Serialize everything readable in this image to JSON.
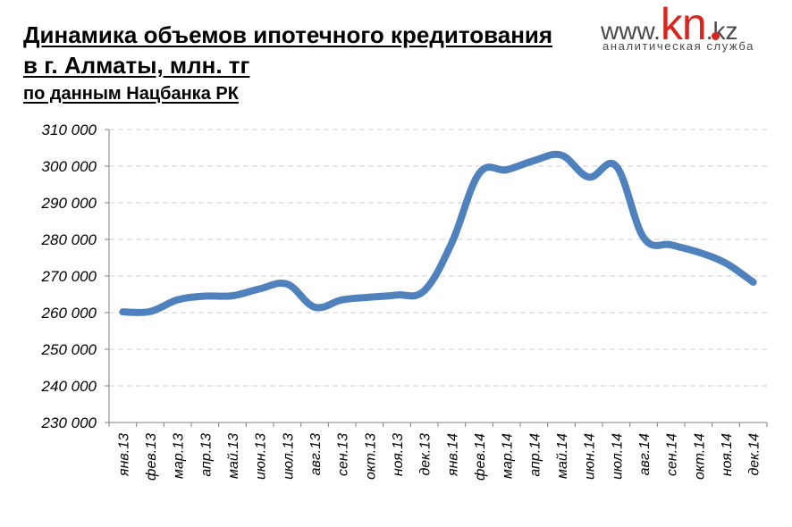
{
  "title": {
    "line1": "Динамика объемов ипотечного кредитования",
    "line2": "в г. Алматы, млн. тг",
    "subtitle": "по данным Нацбанка РК"
  },
  "logo": {
    "www": "www.",
    "brand": "kn",
    "tld": ".kz",
    "tagline": "аналитическая служба",
    "brand_color": "#d7261e"
  },
  "chart_data": {
    "type": "line",
    "categories": [
      "янв.13",
      "фев.13",
      "мар.13",
      "апр.13",
      "май.13",
      "июн.13",
      "июл.13",
      "авг.13",
      "сен.13",
      "окт.13",
      "ноя.13",
      "дек.13",
      "янв.14",
      "фев.14",
      "мар.14",
      "апр.14",
      "май.14",
      "июн.14",
      "июл.14",
      "авг.14",
      "сен.14",
      "окт.14",
      "ноя.14",
      "дек.14"
    ],
    "series": [
      {
        "values": [
          260200,
          260300,
          263500,
          264500,
          264600,
          266500,
          267800,
          261500,
          263500,
          264200,
          264800,
          266000,
          279000,
          298000,
          299000,
          301500,
          303000,
          297000,
          300000,
          280500,
          278500,
          276500,
          273500,
          268300
        ],
        "color": "#4f81bd"
      }
    ],
    "ylim": [
      230000,
      310000
    ],
    "ytick_step": 10000,
    "ytick_labels": [
      "230 000",
      "240 000",
      "250 000",
      "260 000",
      "270 000",
      "280 000",
      "290 000",
      "300 000",
      "310 000"
    ],
    "grid": true,
    "legend": "none"
  }
}
